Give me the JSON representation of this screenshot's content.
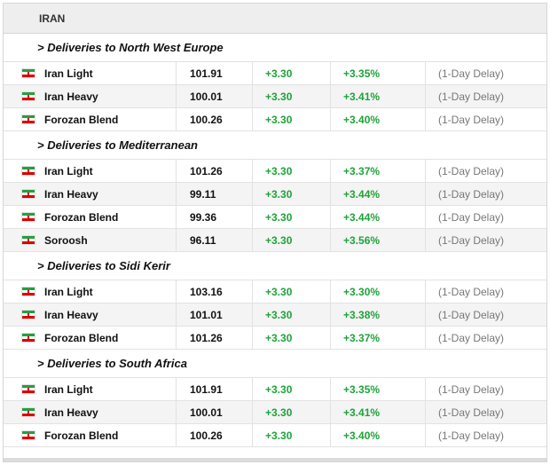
{
  "header": {
    "title": "IRAN"
  },
  "sections": [
    {
      "title": "> Deliveries to North West Europe",
      "rows": [
        {
          "name": "Iran Light",
          "price": "101.91",
          "change": "+3.30",
          "pct": "+3.35%",
          "delay": "(1-Day Delay)"
        },
        {
          "name": "Iran Heavy",
          "price": "100.01",
          "change": "+3.30",
          "pct": "+3.41%",
          "delay": "(1-Day Delay)"
        },
        {
          "name": "Forozan Blend",
          "price": "100.26",
          "change": "+3.30",
          "pct": "+3.40%",
          "delay": "(1-Day Delay)"
        }
      ]
    },
    {
      "title": "> Deliveries to Mediterranean",
      "rows": [
        {
          "name": "Iran Light",
          "price": "101.26",
          "change": "+3.30",
          "pct": "+3.37%",
          "delay": "(1-Day Delay)"
        },
        {
          "name": "Iran Heavy",
          "price": "99.11",
          "change": "+3.30",
          "pct": "+3.44%",
          "delay": "(1-Day Delay)"
        },
        {
          "name": "Forozan Blend",
          "price": "99.36",
          "change": "+3.30",
          "pct": "+3.44%",
          "delay": "(1-Day Delay)"
        },
        {
          "name": "Soroosh",
          "price": "96.11",
          "change": "+3.30",
          "pct": "+3.56%",
          "delay": "(1-Day Delay)"
        }
      ]
    },
    {
      "title": "> Deliveries to Sidi Kerir",
      "rows": [
        {
          "name": "Iran Light",
          "price": "103.16",
          "change": "+3.30",
          "pct": "+3.30%",
          "delay": "(1-Day Delay)"
        },
        {
          "name": "Iran Heavy",
          "price": "101.01",
          "change": "+3.30",
          "pct": "+3.38%",
          "delay": "(1-Day Delay)"
        },
        {
          "name": "Forozan Blend",
          "price": "101.26",
          "change": "+3.30",
          "pct": "+3.37%",
          "delay": "(1-Day Delay)"
        }
      ]
    },
    {
      "title": "> Deliveries to South Africa",
      "rows": [
        {
          "name": "Iran Light",
          "price": "101.91",
          "change": "+3.30",
          "pct": "+3.35%",
          "delay": "(1-Day Delay)"
        },
        {
          "name": "Iran Heavy",
          "price": "100.01",
          "change": "+3.30",
          "pct": "+3.41%",
          "delay": "(1-Day Delay)"
        },
        {
          "name": "Forozan Blend",
          "price": "100.26",
          "change": "+3.30",
          "pct": "+3.40%",
          "delay": "(1-Day Delay)"
        }
      ]
    }
  ],
  "colors": {
    "positive": "#1fa33a",
    "delay": "#777777",
    "header_bg": "#eeeeee",
    "row_alt": "#f4f4f4"
  },
  "icons": {
    "flag": "iran-flag-icon"
  }
}
